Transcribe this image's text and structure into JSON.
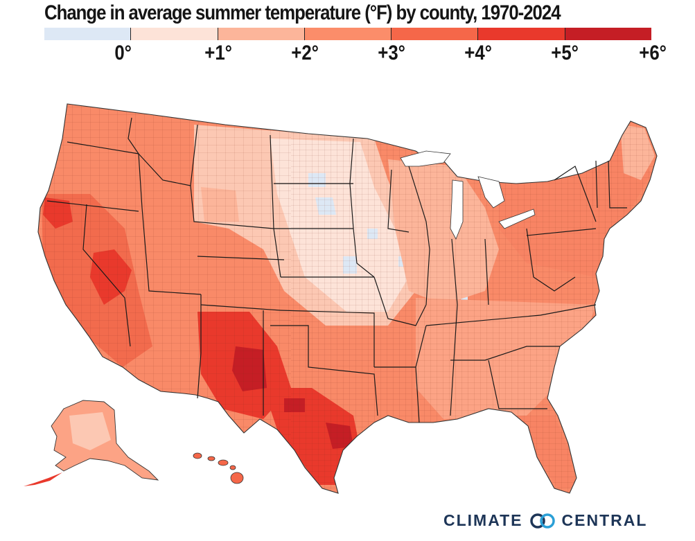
{
  "title": "Change in average summer temperature (°F) by county, 1970-2024",
  "legend": {
    "ticks": [
      "0°",
      "+1°",
      "+2°",
      "+3°",
      "+4°",
      "+5°",
      "+6°"
    ],
    "colors": [
      "#dde8f5",
      "#fde3d8",
      "#fcb59a",
      "#fb8d6a",
      "#f56749",
      "#e9392c",
      "#c51e25"
    ]
  },
  "map": {
    "subject": "Contiguous United States, Alaska and Hawaii by county",
    "colors": {
      "warm_low": "#fde3d8",
      "warm_mid": "#fcb59a",
      "warm_high": "#f56749",
      "hot": "#e9392c",
      "hottest": "#c51e25",
      "cool": "#dde8f5",
      "border": "#222222"
    }
  },
  "brand": {
    "left": "CLIMATE",
    "right": "CENTRAL",
    "color": "#1d3557",
    "logo_icon": "linked-rings-icon"
  }
}
